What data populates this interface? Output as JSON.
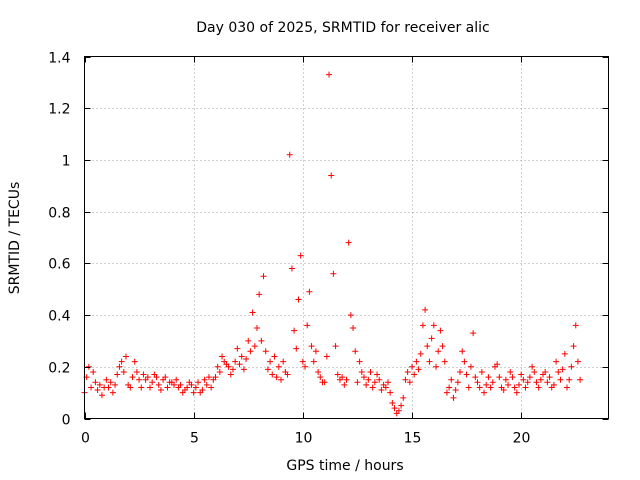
{
  "chart_data": {
    "type": "scatter",
    "title": "Day 030 of 2025, SRMTID for receiver alic",
    "xlabel": "GPS time / hours",
    "ylabel": "SRMTID / TECUs",
    "xlim": [
      0,
      24
    ],
    "ylim": [
      0,
      1.4
    ],
    "x_ticks": [
      0,
      5,
      10,
      15,
      20
    ],
    "x_tick_labels": [
      "0",
      "5",
      "10",
      "15",
      "20"
    ],
    "y_ticks": [
      0,
      0.2,
      0.4,
      0.6,
      0.8,
      1.0,
      1.2,
      1.4
    ],
    "y_tick_labels": [
      "0",
      "0.2",
      "0.4",
      "0.6",
      "0.8",
      "1",
      "1.2",
      "1.4"
    ],
    "grid": true,
    "marker": "+",
    "color": "#ff0000",
    "series": [
      {
        "name": "SRMTID",
        "x": [
          0.0,
          0.1,
          0.2,
          0.3,
          0.4,
          0.5,
          0.6,
          0.7,
          0.8,
          0.9,
          1.0,
          1.1,
          1.2,
          1.3,
          1.4,
          1.5,
          1.6,
          1.7,
          1.8,
          1.9,
          2.0,
          2.1,
          2.2,
          2.3,
          2.4,
          2.5,
          2.6,
          2.7,
          2.8,
          2.9,
          3.0,
          3.1,
          3.2,
          3.3,
          3.4,
          3.5,
          3.6,
          3.7,
          3.8,
          3.9,
          4.0,
          4.1,
          4.2,
          4.3,
          4.4,
          4.5,
          4.6,
          4.7,
          4.8,
          4.9,
          5.0,
          5.1,
          5.2,
          5.3,
          5.4,
          5.5,
          5.6,
          5.7,
          5.8,
          5.9,
          6.0,
          6.1,
          6.2,
          6.3,
          6.4,
          6.5,
          6.6,
          6.7,
          6.8,
          6.9,
          7.0,
          7.1,
          7.2,
          7.3,
          7.4,
          7.5,
          7.6,
          7.7,
          7.8,
          7.9,
          8.0,
          8.1,
          8.2,
          8.3,
          8.4,
          8.5,
          8.6,
          8.7,
          8.8,
          8.9,
          9.0,
          9.1,
          9.2,
          9.3,
          9.4,
          9.5,
          9.6,
          9.7,
          9.8,
          9.9,
          10.0,
          10.1,
          10.2,
          10.3,
          10.4,
          10.5,
          10.6,
          10.7,
          10.8,
          10.9,
          11.0,
          11.1,
          11.2,
          11.3,
          11.4,
          11.5,
          11.6,
          11.7,
          11.8,
          11.9,
          12.0,
          12.1,
          12.2,
          12.3,
          12.4,
          12.5,
          12.6,
          12.7,
          12.8,
          12.9,
          13.0,
          13.1,
          13.2,
          13.3,
          13.4,
          13.5,
          13.6,
          13.7,
          13.8,
          13.9,
          14.0,
          14.1,
          14.2,
          14.3,
          14.4,
          14.5,
          14.6,
          14.7,
          14.8,
          14.9,
          15.0,
          15.1,
          15.2,
          15.3,
          15.4,
          15.5,
          15.6,
          15.7,
          15.8,
          15.9,
          16.0,
          16.1,
          16.2,
          16.3,
          16.4,
          16.5,
          16.6,
          16.7,
          16.8,
          16.9,
          17.0,
          17.1,
          17.2,
          17.3,
          17.4,
          17.5,
          17.6,
          17.7,
          17.8,
          17.9,
          18.0,
          18.1,
          18.2,
          18.3,
          18.4,
          18.5,
          18.6,
          18.7,
          18.8,
          18.9,
          19.0,
          19.1,
          19.2,
          19.3,
          19.4,
          19.5,
          19.6,
          19.7,
          19.8,
          19.9,
          20.0,
          20.1,
          20.2,
          20.3,
          20.4,
          20.5,
          20.6,
          20.7,
          20.8,
          20.9,
          21.0,
          21.1,
          21.2,
          21.3,
          21.4,
          21.5,
          21.6,
          21.7,
          21.8,
          21.9,
          22.0,
          22.1,
          22.2,
          22.3,
          22.4,
          22.5,
          22.6,
          22.7
        ],
        "y": [
          0.1,
          0.16,
          0.2,
          0.12,
          0.18,
          0.14,
          0.11,
          0.13,
          0.09,
          0.12,
          0.15,
          0.12,
          0.14,
          0.1,
          0.13,
          0.17,
          0.2,
          0.22,
          0.18,
          0.24,
          0.13,
          0.12,
          0.16,
          0.22,
          0.18,
          0.15,
          0.12,
          0.17,
          0.15,
          0.16,
          0.12,
          0.14,
          0.17,
          0.16,
          0.13,
          0.11,
          0.15,
          0.16,
          0.12,
          0.14,
          0.14,
          0.13,
          0.15,
          0.12,
          0.13,
          0.1,
          0.11,
          0.12,
          0.14,
          0.13,
          0.1,
          0.12,
          0.14,
          0.1,
          0.11,
          0.15,
          0.13,
          0.16,
          0.12,
          0.15,
          0.16,
          0.2,
          0.18,
          0.24,
          0.22,
          0.21,
          0.2,
          0.17,
          0.19,
          0.22,
          0.27,
          0.21,
          0.24,
          0.19,
          0.23,
          0.3,
          0.26,
          0.41,
          0.28,
          0.35,
          0.48,
          0.3,
          0.55,
          0.26,
          0.19,
          0.22,
          0.17,
          0.24,
          0.16,
          0.2,
          0.15,
          0.22,
          0.18,
          0.17,
          1.02,
          0.58,
          0.34,
          0.27,
          0.46,
          0.63,
          0.22,
          0.2,
          0.36,
          0.49,
          0.28,
          0.22,
          0.26,
          0.18,
          0.16,
          0.14,
          0.14,
          0.24,
          1.33,
          0.94,
          0.56,
          0.28,
          0.17,
          0.15,
          0.16,
          0.13,
          0.15,
          0.68,
          0.4,
          0.35,
          0.26,
          0.14,
          0.22,
          0.18,
          0.16,
          0.13,
          0.15,
          0.18,
          0.12,
          0.14,
          0.17,
          0.15,
          0.11,
          0.13,
          0.12,
          0.14,
          0.1,
          0.06,
          0.04,
          0.02,
          0.03,
          0.05,
          0.08,
          0.15,
          0.18,
          0.14,
          0.2,
          0.17,
          0.22,
          0.19,
          0.25,
          0.36,
          0.42,
          0.28,
          0.22,
          0.31,
          0.36,
          0.2,
          0.26,
          0.34,
          0.28,
          0.22,
          0.1,
          0.12,
          0.15,
          0.08,
          0.11,
          0.14,
          0.18,
          0.26,
          0.22,
          0.17,
          0.12,
          0.2,
          0.33,
          0.16,
          0.14,
          0.12,
          0.18,
          0.1,
          0.13,
          0.16,
          0.12,
          0.14,
          0.2,
          0.21,
          0.16,
          0.12,
          0.11,
          0.15,
          0.13,
          0.18,
          0.16,
          0.12,
          0.1,
          0.13,
          0.17,
          0.15,
          0.12,
          0.14,
          0.16,
          0.2,
          0.18,
          0.14,
          0.12,
          0.15,
          0.17,
          0.18,
          0.14,
          0.16,
          0.12,
          0.13,
          0.22,
          0.18,
          0.15,
          0.19,
          0.25,
          0.12,
          0.15,
          0.2,
          0.28,
          0.36,
          0.22,
          0.15
        ]
      }
    ]
  }
}
